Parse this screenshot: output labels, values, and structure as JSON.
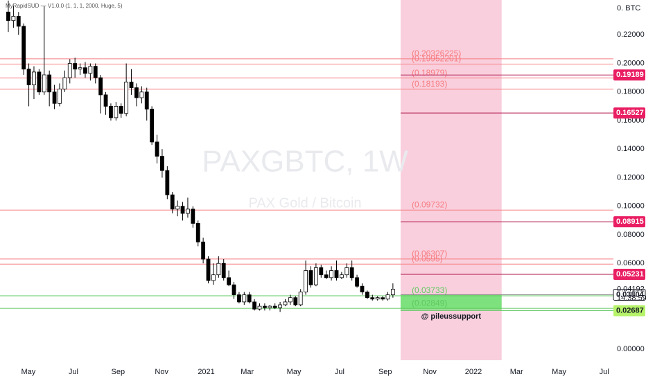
{
  "chart_data": {
    "type": "candlestick",
    "title": "PAXGBTC, 1W",
    "subtitle": "PAX Gold / Bitcoin",
    "indicator": "MyRapidSUD — V1.0.0 (1, 1, 1, 2000, Huge, 5)",
    "currency_label": "0. BTC",
    "annotation": "@ pileussupport",
    "x": [
      0,
      1,
      2,
      3,
      4,
      5,
      6,
      7,
      8,
      9,
      10,
      11,
      12,
      13,
      14,
      15,
      16,
      17,
      18,
      19,
      20,
      21,
      22,
      23,
      24,
      25,
      26,
      27,
      28,
      29,
      30,
      31,
      32,
      33,
      34,
      35,
      36,
      37,
      38,
      39,
      40,
      41,
      42,
      43,
      44,
      45,
      46,
      47,
      48,
      49,
      50,
      51,
      52,
      53,
      54,
      55,
      56,
      57,
      58,
      59,
      60,
      61,
      62,
      63,
      64,
      65,
      66,
      67,
      68,
      69,
      70,
      71,
      72,
      73,
      74,
      75
    ],
    "open": [
      0.236,
      0.23,
      0.233,
      0.226,
      0.196,
      0.185,
      0.194,
      0.18,
      0.192,
      0.18,
      0.172,
      0.182,
      0.19,
      0.2,
      0.196,
      0.197,
      0.193,
      0.198,
      0.19,
      0.178,
      0.17,
      0.162,
      0.17,
      0.165,
      0.187,
      0.183,
      0.176,
      0.18,
      0.168,
      0.145,
      0.135,
      0.125,
      0.108,
      0.098,
      0.1,
      0.095,
      0.098,
      0.088,
      0.075,
      0.063,
      0.048,
      0.052,
      0.06,
      0.05,
      0.045,
      0.038,
      0.033,
      0.038,
      0.033,
      0.028,
      0.03,
      0.029,
      0.03,
      0.029,
      0.031,
      0.033,
      0.036,
      0.031,
      0.04,
      0.055,
      0.045,
      0.057,
      0.052,
      0.05,
      0.055,
      0.05,
      0.052,
      0.057,
      0.05,
      0.044,
      0.04,
      0.036,
      0.035,
      0.036,
      0.035,
      0.038
    ],
    "high": [
      0.244,
      0.24,
      0.236,
      0.228,
      0.2,
      0.198,
      0.196,
      0.24,
      0.195,
      0.185,
      0.186,
      0.195,
      0.203,
      0.204,
      0.2,
      0.201,
      0.2,
      0.2,
      0.192,
      0.18,
      0.172,
      0.173,
      0.172,
      0.2,
      0.196,
      0.186,
      0.184,
      0.183,
      0.17,
      0.15,
      0.14,
      0.128,
      0.11,
      0.104,
      0.103,
      0.106,
      0.1,
      0.09,
      0.078,
      0.065,
      0.06,
      0.065,
      0.063,
      0.055,
      0.047,
      0.04,
      0.04,
      0.04,
      0.035,
      0.032,
      0.032,
      0.031,
      0.032,
      0.033,
      0.035,
      0.038,
      0.037,
      0.042,
      0.062,
      0.058,
      0.06,
      0.059,
      0.055,
      0.058,
      0.062,
      0.054,
      0.06,
      0.062,
      0.052,
      0.046,
      0.041,
      0.038,
      0.037,
      0.037,
      0.04,
      0.046
    ],
    "low": [
      0.222,
      0.225,
      0.22,
      0.192,
      0.17,
      0.175,
      0.178,
      0.178,
      0.17,
      0.168,
      0.17,
      0.18,
      0.186,
      0.19,
      0.192,
      0.19,
      0.188,
      0.186,
      0.165,
      0.164,
      0.16,
      0.16,
      0.162,
      0.163,
      0.178,
      0.17,
      0.172,
      0.16,
      0.143,
      0.13,
      0.12,
      0.105,
      0.095,
      0.093,
      0.09,
      0.092,
      0.085,
      0.072,
      0.06,
      0.046,
      0.045,
      0.05,
      0.048,
      0.044,
      0.035,
      0.032,
      0.031,
      0.032,
      0.027,
      0.027,
      0.027,
      0.027,
      0.028,
      0.026,
      0.03,
      0.031,
      0.03,
      0.03,
      0.038,
      0.043,
      0.044,
      0.05,
      0.049,
      0.048,
      0.048,
      0.049,
      0.05,
      0.048,
      0.043,
      0.038,
      0.035,
      0.034,
      0.034,
      0.034,
      0.034,
      0.036
    ],
    "close": [
      0.23,
      0.233,
      0.226,
      0.196,
      0.185,
      0.194,
      0.18,
      0.192,
      0.18,
      0.172,
      0.182,
      0.19,
      0.2,
      0.196,
      0.197,
      0.193,
      0.198,
      0.19,
      0.178,
      0.17,
      0.162,
      0.17,
      0.165,
      0.187,
      0.183,
      0.176,
      0.18,
      0.168,
      0.145,
      0.135,
      0.125,
      0.108,
      0.098,
      0.1,
      0.095,
      0.098,
      0.088,
      0.075,
      0.063,
      0.048,
      0.052,
      0.06,
      0.05,
      0.045,
      0.038,
      0.033,
      0.038,
      0.033,
      0.028,
      0.03,
      0.029,
      0.03,
      0.029,
      0.031,
      0.033,
      0.036,
      0.031,
      0.04,
      0.055,
      0.045,
      0.057,
      0.052,
      0.05,
      0.055,
      0.05,
      0.052,
      0.057,
      0.05,
      0.044,
      0.04,
      0.036,
      0.035,
      0.036,
      0.035,
      0.038,
      0.04192
    ],
    "up_color": "#ffffff",
    "down_color": "#000000",
    "xlim": [
      -1.62,
      118
    ],
    "xticks": [
      {
        "value": 3.9,
        "label": "May"
      },
      {
        "value": 12.7,
        "label": "Jul"
      },
      {
        "value": 21.4,
        "label": "Sep"
      },
      {
        "value": 29.9,
        "label": "Nov"
      },
      {
        "value": 38.6,
        "label": "2021"
      },
      {
        "value": 46.6,
        "label": "Mar"
      },
      {
        "value": 55.7,
        "label": "May"
      },
      {
        "value": 64.6,
        "label": "Jul"
      },
      {
        "value": 73.5,
        "label": "Sep"
      },
      {
        "value": 82.2,
        "label": "Nov"
      },
      {
        "value": 90.7,
        "label": "2022"
      },
      {
        "value": 99.1,
        "label": "Mar"
      },
      {
        "value": 107.4,
        "label": "May"
      },
      {
        "value": 116.2,
        "label": "Jul"
      }
    ],
    "ylim": [
      -0.0078,
      0.2444
    ],
    "yticks": [
      {
        "value": 0,
        "label": "0.00000"
      },
      {
        "value": 0.06,
        "label": "0.06000"
      },
      {
        "value": 0.08,
        "label": "0.08000"
      },
      {
        "value": 0.1,
        "label": "0.10000"
      },
      {
        "value": 0.12,
        "label": "0.12000"
      },
      {
        "value": 0.14,
        "label": "0.14000"
      },
      {
        "value": 0.16,
        "label": "0.16000"
      },
      {
        "value": 0.18,
        "label": "0.18000"
      },
      {
        "value": 0.2,
        "label": "0.20000"
      },
      {
        "value": 0.22,
        "label": "0.22000"
      }
    ],
    "zones": [
      {
        "x": [
          76.5,
          96.2
        ],
        "color": "#f9cfdd"
      },
      {
        "x": [
          76.5,
          96.2
        ],
        "y": [
          0.0276,
          0.0383
        ],
        "color": "#7de27d"
      }
    ],
    "levels": [
      {
        "value": 0.20326225,
        "label": "(0.20326225)",
        "color": "#f77c80"
      },
      {
        "value": 0.19952201,
        "label": "(0.19952201)",
        "color": "#f77c80"
      },
      {
        "value": 0.18979,
        "label": "(0.18979)",
        "color": "#f77c80"
      },
      {
        "value": 0.18193,
        "label": "(0.18193)",
        "color": "#f77c80"
      },
      {
        "value": 0.09732,
        "label": "(0.09732)",
        "color": "#f77c80"
      },
      {
        "value": 0.06307,
        "label": "(0.06307)",
        "color": "#f77c80"
      },
      {
        "value": 0.0595,
        "label": "(0.0595)",
        "color": "#f77c80"
      },
      {
        "value": 0.03733,
        "label": "(0.03733)",
        "color": "#5fc85f"
      },
      {
        "value": 0.02849,
        "label": "(0.02849)",
        "color": "#5fc85f"
      }
    ],
    "badges": [
      {
        "value": 0.19189,
        "color": "#e91e63"
      },
      {
        "value": 0.16527,
        "color": "#e91e63"
      },
      {
        "value": 0.08915,
        "color": "#e91e63"
      },
      {
        "value": 0.05231,
        "color": "#e91e63"
      },
      {
        "value": 0.03804,
        "color": "#ffffff"
      },
      {
        "value": 0.02687,
        "color": "#b6f36a"
      }
    ],
    "price": 0.04192,
    "countdown": "14:38:59"
  }
}
